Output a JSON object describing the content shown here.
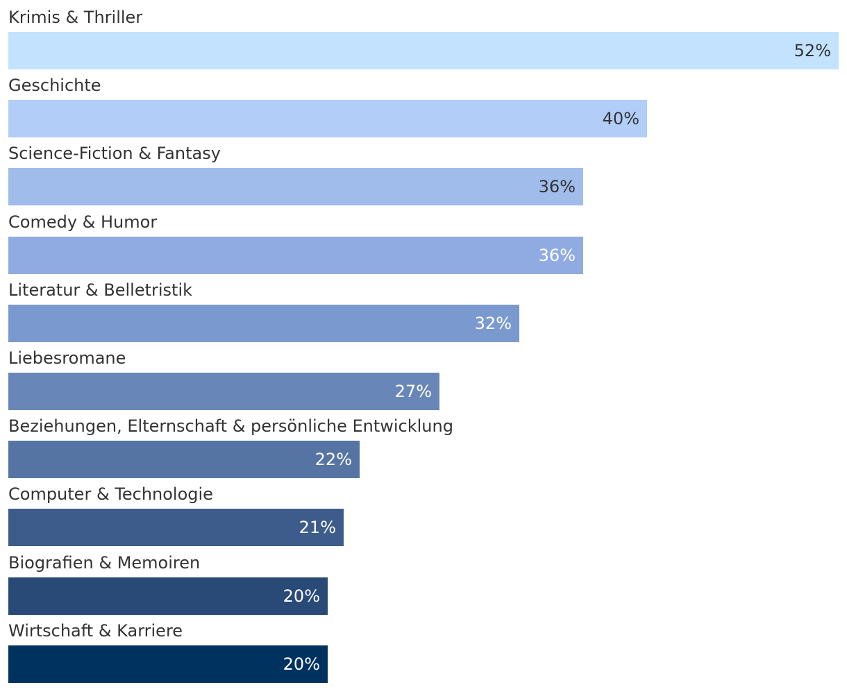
{
  "chart_data": {
    "type": "bar",
    "orientation": "horizontal",
    "title": "",
    "xlabel": "",
    "ylabel": "",
    "unit": "%",
    "xlim": [
      0,
      52
    ],
    "grid": false,
    "legend": "none",
    "categories": [
      "Krimis & Thriller",
      "Geschichte",
      "Science-Fiction & Fantasy",
      "Comedy & Humor",
      "Literatur & Belletristik",
      "Liebesromane",
      "Beziehungen, Elternschaft & persönliche Entwicklung",
      "Computer & Technologie",
      "Biografien & Memoiren",
      "Wirtschaft & Karriere"
    ],
    "values": [
      52,
      40,
      36,
      36,
      32,
      27,
      22,
      21,
      20,
      20
    ],
    "data_labels": [
      "52%",
      "40%",
      "36%",
      "36%",
      "32%",
      "27%",
      "22%",
      "21%",
      "20%",
      "20%"
    ],
    "colors": [
      "#c3e2fd",
      "#b1cdf8",
      "#a0bcea",
      "#8fabe1",
      "#7a99cf",
      "#6886b8",
      "#5574a4",
      "#3e5c8b",
      "#294a77",
      "#00325f"
    ],
    "label_colors": [
      "#333333",
      "#333333",
      "#333333",
      "#ffffff",
      "#ffffff",
      "#ffffff",
      "#ffffff",
      "#ffffff",
      "#ffffff",
      "#ffffff"
    ]
  }
}
